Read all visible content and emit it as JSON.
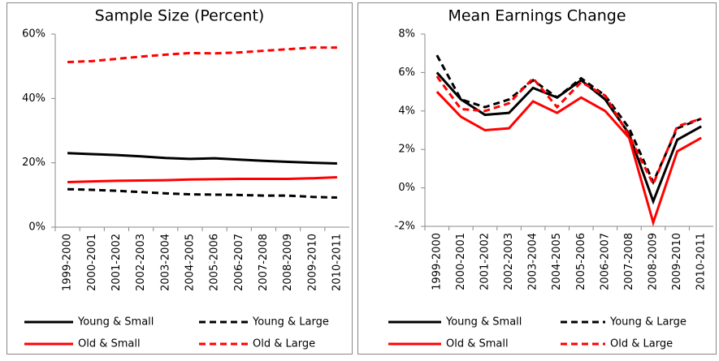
{
  "chart_data": [
    {
      "type": "line",
      "title": "Sample Size (Percent)",
      "categories": [
        "1999-2000",
        "2000-2001",
        "2001-2002",
        "2002-2003",
        "2003-2004",
        "2004-2005",
        "2005-2006",
        "2006-2007",
        "2007-2008",
        "2008-2009",
        "2009-2010",
        "2010-2011"
      ],
      "ylim": [
        0,
        60
      ],
      "yticks": [
        {
          "value": 0,
          "label": "0%"
        },
        {
          "value": 20,
          "label": "20%"
        },
        {
          "value": 40,
          "label": "40%"
        },
        {
          "value": 60,
          "label": "60%"
        }
      ],
      "series": [
        {
          "name": "Young & Small",
          "color": "#000000",
          "dash": false,
          "values": [
            23,
            22.7,
            22.4,
            22,
            21.5,
            21.2,
            21.4,
            21,
            20.6,
            20.3,
            20,
            19.8
          ]
        },
        {
          "name": "Young &  Large",
          "color": "#000000",
          "dash": true,
          "values": [
            11.8,
            11.6,
            11.3,
            10.9,
            10.5,
            10.2,
            10.1,
            10,
            9.8,
            9.8,
            9.4,
            9.2
          ]
        },
        {
          "name": "Old & Small",
          "color": "#ff0000",
          "dash": false,
          "values": [
            14,
            14.2,
            14.4,
            14.5,
            14.6,
            14.8,
            14.9,
            15,
            15,
            15,
            15.2,
            15.5
          ]
        },
        {
          "name": "Old & Large",
          "color": "#ff0000",
          "dash": true,
          "values": [
            51.3,
            51.6,
            52.3,
            53,
            53.6,
            54.1,
            54,
            54.3,
            54.8,
            55.3,
            55.8,
            55.8
          ]
        }
      ]
    },
    {
      "type": "line",
      "title": "Mean Earnings Change",
      "categories": [
        "1999-2000",
        "2000-2001",
        "2001-2002",
        "2002-2003",
        "2003-2004",
        "2004-2005",
        "2005-2006",
        "2006-2007",
        "2007-2008",
        "2008-2009",
        "2009-2010",
        "2010-2011"
      ],
      "ylim": [
        -2,
        8
      ],
      "yticks": [
        {
          "value": -2,
          "label": "-2%"
        },
        {
          "value": 0,
          "label": "0%"
        },
        {
          "value": 2,
          "label": "2%"
        },
        {
          "value": 4,
          "label": "4%"
        },
        {
          "value": 6,
          "label": "6%"
        },
        {
          "value": 8,
          "label": "8%"
        }
      ],
      "series": [
        {
          "name": "Young & Small",
          "color": "#000000",
          "dash": false,
          "values": [
            6.0,
            4.6,
            3.8,
            3.9,
            5.2,
            4.7,
            5.6,
            4.6,
            2.8,
            -0.7,
            2.5,
            3.2
          ]
        },
        {
          "name": "Young &  Large",
          "color": "#000000",
          "dash": true,
          "values": [
            6.9,
            4.6,
            4.2,
            4.6,
            5.6,
            4.7,
            5.7,
            4.8,
            3.1,
            0.3,
            3.1,
            3.6
          ]
        },
        {
          "name": "Old & Small",
          "color": "#ff0000",
          "dash": false,
          "values": [
            5.0,
            3.7,
            3.0,
            3.1,
            4.5,
            3.9,
            4.7,
            4.0,
            2.6,
            -1.8,
            1.9,
            2.6
          ]
        },
        {
          "name": "Old & Large",
          "color": "#ff0000",
          "dash": true,
          "values": [
            5.8,
            4.1,
            4.0,
            4.4,
            5.7,
            4.2,
            5.5,
            4.8,
            2.7,
            0.2,
            3.2,
            3.6
          ]
        }
      ]
    }
  ]
}
